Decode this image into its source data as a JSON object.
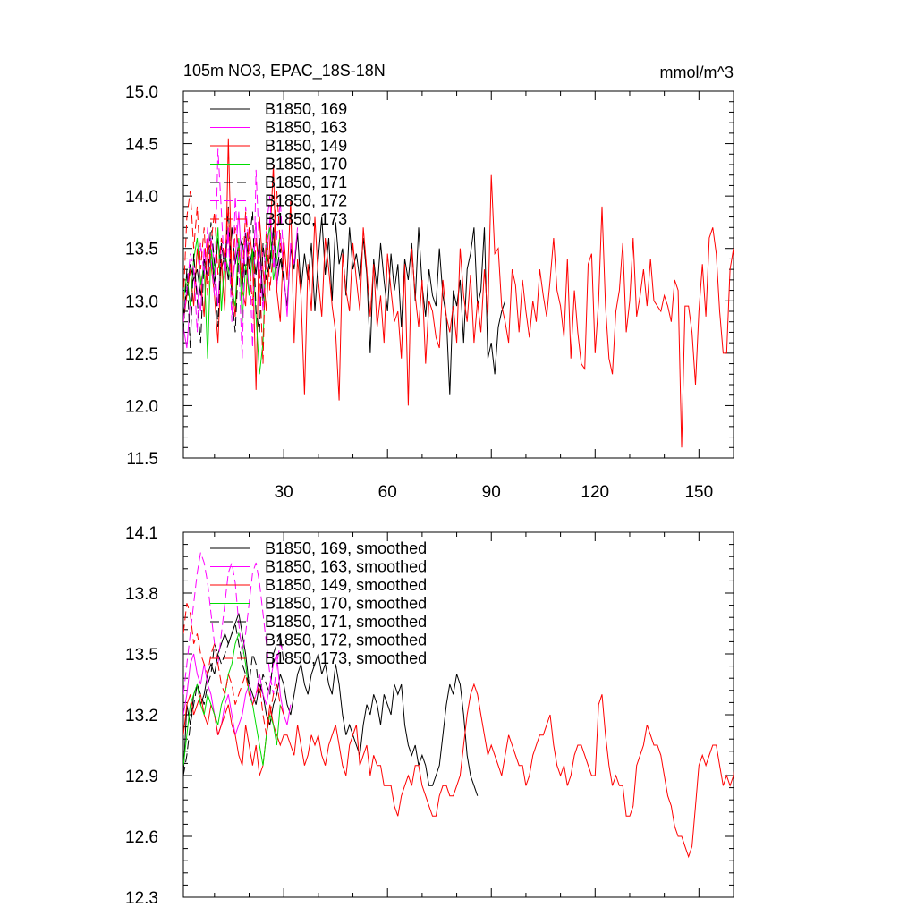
{
  "title_left": "105m NO3, EPAC_18S-18N",
  "title_right": "mmol/m^3",
  "chart_data": [
    {
      "type": "line",
      "ylim": [
        11.5,
        15.0
      ],
      "xlim": [
        1,
        160
      ],
      "yticks": [
        "11.5",
        "12.0",
        "12.5",
        "13.0",
        "13.5",
        "14.0",
        "14.5",
        "15.0"
      ],
      "xticks": [
        "30",
        "60",
        "90",
        "120",
        "150"
      ],
      "grid": false,
      "legend_position": "top-left",
      "series": [
        {
          "name": "B1850, 169",
          "color": "#000000",
          "dash": "solid",
          "y": [
            12.85,
            13.1,
            13.35,
            13.2,
            13.3,
            13.05,
            13.4,
            13.25,
            13.5,
            13.15,
            13.6,
            13.3,
            13.45,
            13.2,
            13.7,
            13.35,
            13.55,
            13.1,
            13.65,
            13.3,
            13.5,
            13.25,
            13.6,
            13.0,
            13.45,
            13.3,
            13.7,
            13.15,
            13.4,
            13.2,
            12.95,
            13.5,
            13.3,
            13.65,
            13.1,
            13.45,
            13.2,
            13.55,
            12.9,
            13.4,
            13.8,
            13.25,
            13.6,
            13.0,
            13.75,
            13.35,
            13.5,
            13.05,
            13.7,
            13.3,
            13.45,
            13.2,
            13.6,
            13.25,
            12.5,
            13.4,
            13.1,
            13.55,
            13.2,
            12.9,
            13.45,
            13.1,
            13.35,
            12.75,
            13.4,
            13.2,
            13.55,
            13.0,
            13.7,
            13.15,
            12.85,
            13.3,
            13.05,
            12.95,
            13.5,
            13.05,
            12.85,
            12.1,
            13.1,
            12.95,
            13.2,
            12.6,
            13.3,
            13.45,
            13.7,
            12.95,
            13.1,
            13.7,
            12.45,
            12.6,
            12.3,
            12.75,
            12.9,
            13.0
          ]
        },
        {
          "name": "B1850, 163",
          "color": "#ff00ff",
          "dash": "solid",
          "y": [
            12.75,
            12.55,
            13.0,
            13.3,
            13.1,
            12.9,
            13.5,
            13.2,
            13.6,
            13.35,
            12.95,
            13.55,
            13.3,
            13.7,
            13.1,
            13.4,
            13.85,
            13.25,
            13.6,
            13.05,
            13.45,
            13.75,
            12.95,
            13.5,
            13.3,
            13.8,
            13.45,
            13.1,
            13.65,
            13.3,
            12.85,
            13.55,
            13.35,
            13.7
          ]
        },
        {
          "name": "B1850, 149",
          "color": "#ff0000",
          "dash": "solid",
          "y": [
            12.8,
            13.05,
            13.3,
            12.95,
            13.5,
            13.2,
            12.85,
            13.6,
            13.35,
            13.05,
            12.6,
            13.4,
            12.9,
            14.55,
            13.2,
            12.85,
            13.55,
            13.1,
            12.95,
            13.7,
            13.4,
            12.15,
            13.8,
            13.3,
            12.9,
            13.55,
            14.3,
            13.1,
            12.8,
            13.6,
            13.2,
            13.95,
            12.6,
            13.4,
            13.05,
            12.1,
            13.35,
            12.9,
            13.8,
            13.2,
            12.85,
            13.6,
            13.3,
            12.95,
            12.7,
            12.05,
            13.45,
            13.1,
            12.9,
            13.55,
            13.2,
            12.9,
            13.7,
            13.3,
            12.85,
            13.35,
            12.75,
            13.05,
            12.6,
            13.45,
            13.1,
            12.8,
            12.9,
            12.45,
            13.35,
            12.0,
            13.5,
            13.05,
            12.75,
            13.2,
            12.4,
            13.0,
            12.9,
            12.65,
            12.55,
            13.2,
            12.85,
            12.7,
            12.95,
            12.6,
            13.5,
            13.05,
            12.8,
            13.25,
            12.6,
            13.0,
            12.7,
            13.3,
            12.85,
            14.2,
            13.45,
            13.5,
            12.95,
            12.8,
            12.6,
            13.3,
            13.15,
            12.7,
            13.2,
            12.9,
            12.65,
            13.0,
            12.8,
            13.3,
            13.05,
            12.85,
            13.2,
            13.6,
            13.1,
            12.95,
            12.65,
            13.4,
            12.45,
            13.1,
            12.7,
            12.4,
            12.35,
            13.35,
            13.45,
            12.5,
            13.0,
            13.9,
            12.95,
            12.45,
            12.3,
            12.9,
            13.1,
            13.55,
            12.7,
            13.0,
            13.6,
            12.85,
            13.05,
            13.3,
            12.95,
            13.4,
            13.0,
            12.95,
            12.9,
            13.05,
            12.95,
            12.8,
            13.2,
            13.1,
            11.6,
            12.95,
            12.95,
            12.7,
            12.2,
            12.9,
            13.35,
            12.85,
            13.6,
            13.7,
            13.45,
            12.9,
            12.5,
            12.5,
            13.3,
            13.5,
            12.45,
            13.6,
            13.8,
            13.25
          ]
        },
        {
          "name": "B1850, 170",
          "color": "#00dd00",
          "dash": "solid",
          "y": [
            13.0,
            13.25,
            12.95,
            13.4,
            13.6,
            13.15,
            13.35,
            12.45,
            13.5,
            13.25,
            13.7,
            12.9,
            13.45,
            13.3,
            13.1,
            12.95,
            13.6,
            12.8,
            13.35,
            13.05,
            13.5,
            12.85,
            12.3,
            12.6,
            13.55,
            13.7,
            13.2,
            13.4,
            13.65
          ]
        },
        {
          "name": "B1850, 171",
          "color": "#000000",
          "dash": "dashed",
          "y": [
            12.7,
            13.3,
            12.55,
            13.45,
            13.0,
            12.6,
            13.4,
            13.2,
            13.75,
            13.35,
            12.75,
            13.55,
            13.3,
            13.9,
            13.05,
            12.7,
            13.45,
            13.6,
            13.25,
            13.55,
            13.85,
            12.9,
            12.7,
            13.55,
            13.2,
            13.4,
            13.65,
            13.3,
            13.5,
            13.2
          ]
        },
        {
          "name": "B1850, 172",
          "color": "#ff00ff",
          "dash": "dashed",
          "y": [
            12.8,
            13.1,
            13.45,
            13.3,
            12.7,
            13.55,
            13.25,
            13.7,
            13.4,
            13.05,
            14.45,
            13.85,
            13.2,
            13.65,
            12.8,
            14.0,
            13.35,
            12.45,
            13.9,
            13.5,
            12.55,
            14.25,
            13.45,
            12.9,
            13.7,
            14.0,
            13.3,
            13.6,
            13.95,
            13.4
          ]
        },
        {
          "name": "B1850, 173",
          "color": "#ff0000",
          "dash": "dashed",
          "y": [
            13.0,
            13.8,
            14.05,
            13.5,
            13.9,
            13.3,
            13.7,
            13.05,
            13.55,
            13.85,
            13.25,
            13.6,
            13.4,
            13.9,
            13.05,
            13.7,
            13.5,
            13.2,
            13.85,
            13.4,
            12.95,
            13.6,
            13.3,
            12.4,
            13.75,
            13.1,
            13.5,
            14.05,
            13.55,
            13.35
          ]
        }
      ]
    },
    {
      "type": "line",
      "ylim": [
        12.3,
        14.1
      ],
      "xlim": [
        1,
        160
      ],
      "yticks": [
        "12.3",
        "12.6",
        "12.9",
        "13.2",
        "13.5",
        "13.8",
        "14.1"
      ],
      "xticks": [],
      "grid": false,
      "legend_position": "top-left",
      "series": [
        {
          "name": "B1850, 169, smoothed",
          "color": "#000000",
          "dash": "solid",
          "y": [
            12.9,
            13.25,
            13.15,
            13.3,
            13.35,
            13.25,
            13.3,
            13.4,
            13.45,
            13.4,
            13.5,
            13.55,
            13.6,
            13.55,
            13.6,
            13.65,
            13.7,
            13.6,
            13.5,
            13.35,
            13.3,
            13.25,
            13.35,
            13.3,
            13.2,
            13.15,
            13.25,
            13.3,
            13.4,
            13.35,
            13.25,
            13.2,
            13.3,
            13.4,
            13.45,
            13.35,
            13.3,
            13.4,
            13.45,
            13.5,
            13.4,
            13.45,
            13.35,
            13.3,
            13.45,
            13.35,
            13.2,
            13.1,
            13.15,
            13.1,
            13.05,
            13.0,
            13.15,
            13.25,
            13.2,
            13.3,
            13.25,
            13.15,
            13.3,
            13.25,
            13.2,
            13.35,
            13.3,
            13.35,
            13.15,
            13.05,
            13.0,
            13.05,
            12.95,
            13.0,
            12.95,
            12.85,
            12.85,
            12.9,
            12.95,
            13.1,
            13.25,
            13.35,
            13.3,
            13.4,
            13.35,
            13.2,
            13.0,
            12.9,
            12.85,
            12.8
          ]
        },
        {
          "name": "B1850, 163, smoothed",
          "color": "#ff00ff",
          "dash": "solid",
          "y": [
            13.2,
            13.3,
            13.45,
            13.5,
            13.4,
            13.35,
            13.45,
            13.35,
            13.3,
            13.2,
            13.1,
            13.15,
            13.25,
            13.3,
            13.2,
            13.1,
            13.15,
            13.2,
            13.3,
            13.35,
            13.25,
            13.3,
            13.4,
            13.3,
            13.25,
            13.35,
            13.45,
            13.5,
            13.3,
            13.2,
            13.15,
            13.25
          ]
        },
        {
          "name": "B1850, 149, smoothed",
          "color": "#ff0000",
          "dash": "solid",
          "y": [
            13.1,
            13.25,
            13.3,
            13.2,
            13.25,
            13.3,
            13.2,
            13.15,
            13.25,
            13.2,
            13.1,
            13.15,
            13.2,
            13.25,
            13.15,
            13.1,
            13.0,
            12.95,
            13.15,
            13.05,
            12.95,
            13.05,
            12.9,
            12.95,
            13.1,
            13.25,
            13.15,
            13.1,
            13.05,
            13.1,
            13.1,
            13.05,
            13.0,
            13.15,
            13.05,
            12.95,
            13.0,
            13.1,
            13.05,
            13.1,
            13.0,
            12.95,
            13.05,
            13.1,
            13.15,
            13.05,
            12.95,
            12.9,
            13.05,
            13.1,
            13.15,
            12.95,
            13.0,
            13.05,
            12.9,
            13.0,
            12.95,
            12.95,
            12.85,
            12.85,
            12.85,
            12.75,
            12.7,
            12.8,
            12.85,
            12.9,
            12.85,
            12.95,
            12.95,
            12.85,
            12.8,
            12.75,
            12.7,
            12.7,
            12.8,
            12.85,
            12.85,
            12.8,
            12.8,
            12.85,
            12.9,
            13.05,
            13.2,
            13.3,
            13.35,
            13.3,
            13.2,
            13.1,
            13.0,
            13.05,
            13.0,
            12.95,
            12.9,
            13.0,
            13.1,
            13.05,
            13.0,
            12.95,
            12.95,
            12.85,
            12.9,
            13.0,
            13.05,
            13.1,
            13.1,
            13.15,
            13.2,
            13.05,
            12.95,
            12.9,
            12.95,
            12.85,
            12.9,
            13.0,
            13.05,
            13.05,
            13.0,
            12.95,
            12.9,
            12.9,
            13.25,
            13.3,
            13.1,
            12.95,
            12.85,
            12.9,
            12.85,
            12.85,
            12.7,
            12.7,
            12.75,
            12.95,
            13.0,
            13.05,
            13.15,
            13.1,
            13.05,
            13.05,
            13.0,
            12.9,
            12.8,
            12.75,
            12.65,
            12.6,
            12.6,
            12.55,
            12.5,
            12.55,
            12.75,
            12.95,
            13.0,
            12.95,
            13.0,
            13.05,
            13.05,
            12.95,
            12.85,
            12.9,
            12.85,
            12.9,
            13.1,
            13.25
          ]
        },
        {
          "name": "B1850, 170, smoothed",
          "color": "#00dd00",
          "dash": "solid",
          "y": [
            12.95,
            13.1,
            13.25,
            13.3,
            13.35,
            13.25,
            13.2,
            13.3,
            13.25,
            13.2,
            13.15,
            13.25,
            13.3,
            13.4,
            13.45,
            13.55,
            13.6,
            13.55,
            13.45,
            13.3,
            13.25,
            13.15,
            13.05,
            12.95,
            13.1,
            13.2,
            13.15,
            13.05,
            13.25
          ]
        },
        {
          "name": "B1850, 171, smoothed",
          "color": "#000000",
          "dash": "dashed",
          "y": [
            12.9,
            13.0,
            13.15,
            13.25,
            13.35,
            13.3,
            13.25,
            13.35,
            13.4,
            13.55,
            13.5,
            13.45,
            13.5,
            13.55,
            13.6,
            13.65,
            13.55,
            13.45,
            13.4,
            13.35,
            13.5,
            13.45,
            13.3,
            13.4,
            13.35,
            13.3,
            13.5,
            13.55,
            13.6,
            13.45
          ]
        },
        {
          "name": "B1850, 172, smoothed",
          "color": "#ff00ff",
          "dash": "dashed",
          "y": [
            13.3,
            13.45,
            13.6,
            13.75,
            13.9,
            14.0,
            13.95,
            13.85,
            13.7,
            13.55,
            13.45,
            13.6,
            13.75,
            13.9,
            13.95,
            13.85,
            13.65,
            13.5,
            13.6,
            13.75,
            13.9,
            13.95,
            13.85,
            13.7,
            13.55,
            13.4,
            13.3,
            13.45,
            13.55,
            13.5
          ]
        },
        {
          "name": "B1850, 173, smoothed",
          "color": "#ff0000",
          "dash": "dashed",
          "y": [
            13.6,
            13.75,
            13.7,
            13.55,
            13.6,
            13.5,
            13.45,
            13.4,
            13.5,
            13.55,
            13.45,
            13.35,
            13.3,
            13.4,
            13.35,
            13.25,
            13.3,
            13.35,
            13.4,
            13.3,
            13.25,
            13.3,
            13.35,
            13.2,
            13.1,
            13.2,
            13.3,
            13.35,
            13.25,
            13.2
          ]
        }
      ]
    }
  ]
}
